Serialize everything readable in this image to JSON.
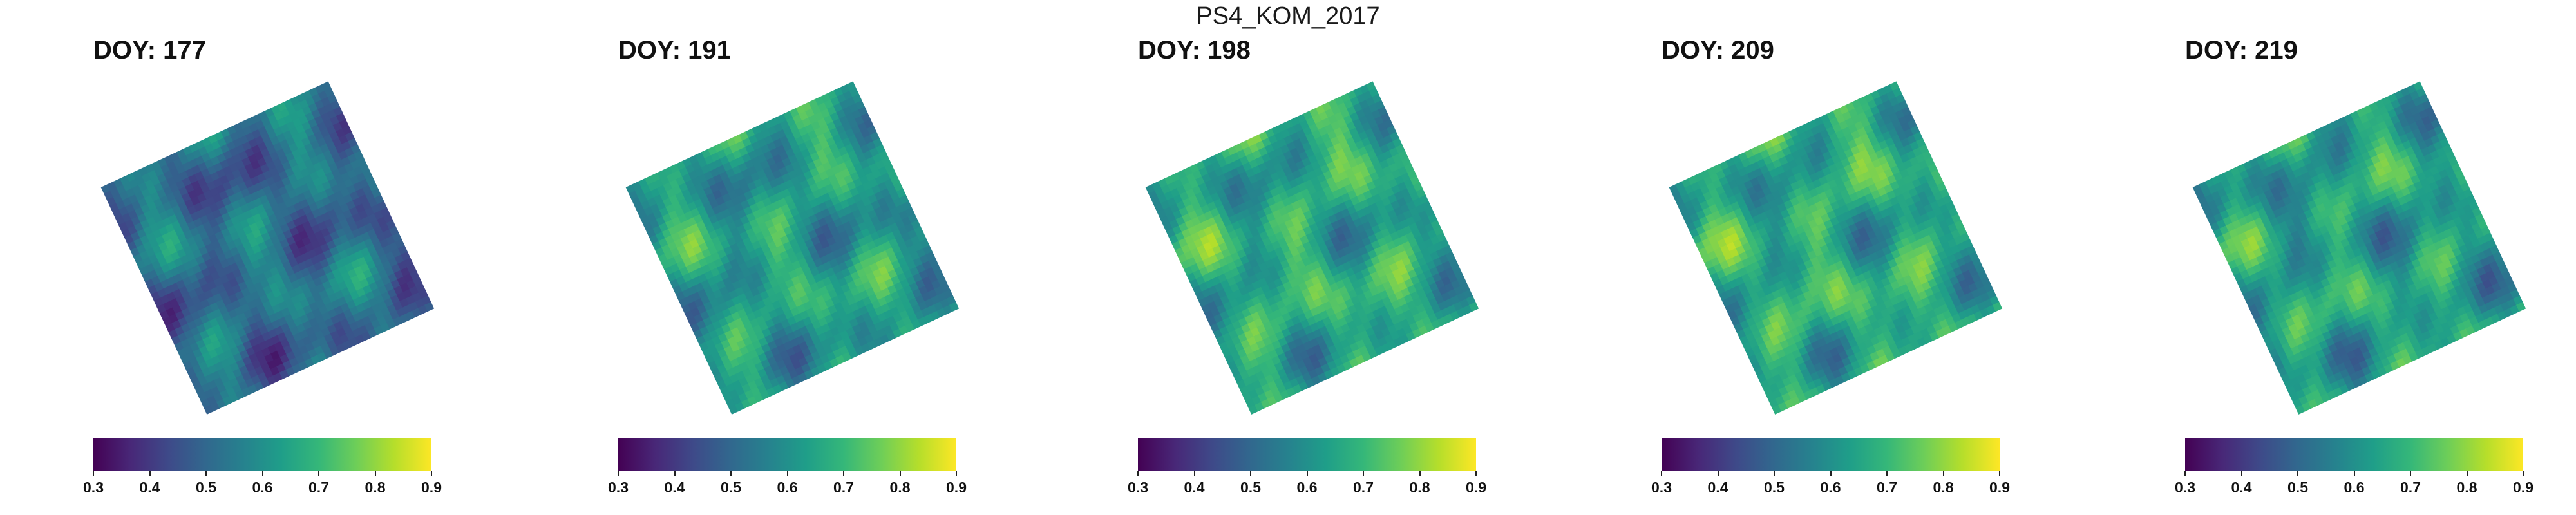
{
  "page_title": "PS4_KOM_2017",
  "chart_data": {
    "type": "heatmap",
    "title": "PS4_KOM_2017",
    "colormap": "viridis",
    "value_range": [
      0.3,
      0.9
    ],
    "colorbar_ticks": [
      "0.3",
      "0.4",
      "0.5",
      "0.6",
      "0.7",
      "0.8",
      "0.9"
    ],
    "colorbar_tick_values": [
      0.3,
      0.4,
      0.5,
      0.6,
      0.7,
      0.8,
      0.9
    ],
    "rotation_deg": -25,
    "panels": [
      {
        "label": "DOY: 177",
        "doy": 177,
        "mean": 0.52
      },
      {
        "label": "DOY: 191",
        "doy": 191,
        "mean": 0.63
      },
      {
        "label": "DOY: 198",
        "doy": 198,
        "mean": 0.66
      },
      {
        "label": "DOY: 209",
        "doy": 209,
        "mean": 0.665
      },
      {
        "label": "DOY: 219",
        "doy": 219,
        "mean": 0.64
      }
    ]
  }
}
